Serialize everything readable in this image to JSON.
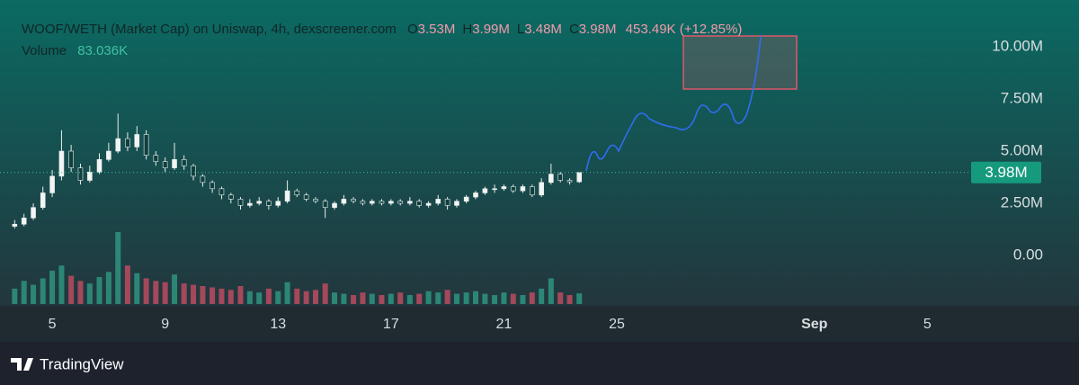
{
  "chart_data": {
    "type": "candlestick",
    "title": "WOOF/WETH (Market Cap) on Uniswap, 4h, dexscreener.com",
    "ohlc_legend": [
      {
        "letter": "O",
        "value": "3.53M"
      },
      {
        "letter": "H",
        "value": "3.99M"
      },
      {
        "letter": "L",
        "value": "3.48M"
      },
      {
        "letter": "C",
        "value": "3.98M"
      }
    ],
    "change": "453.49K (+12.85%)",
    "volume_label": "Volume",
    "volume_value": "83.036K",
    "last_label": "3.98M",
    "brand": "TradingView",
    "up_color": "#f2f5f4",
    "down_color": "#10403d",
    "volume_up_color": "#2e8f7c",
    "volume_down_color": "#b34a5e",
    "xlim": [
      3.15,
      37.55
    ],
    "ylim": [
      -2.41,
      12.24
    ],
    "xticks": [
      5,
      9,
      13,
      17,
      21,
      25,
      {
        "value": 32,
        "label": "Sep"
      },
      {
        "value": 36,
        "label": "5"
      }
    ],
    "yticks": [
      {
        "value": 10,
        "label": "10.00M"
      },
      {
        "value": 7.5,
        "label": "7.50M"
      },
      {
        "value": 5,
        "label": "5.00M"
      },
      {
        "value": 2.5,
        "label": "2.50M"
      },
      {
        "value": 0,
        "label": "0.00"
      }
    ],
    "grid": false,
    "x": [
      3.67,
      4,
      4.33,
      4.67,
      5,
      5.33,
      5.67,
      6,
      6.33,
      6.67,
      7,
      7.33,
      7.67,
      8,
      8.33,
      8.67,
      9,
      9.33,
      9.67,
      10,
      10.33,
      10.67,
      11,
      11.33,
      11.67,
      12,
      12.33,
      12.67,
      13,
      13.33,
      13.67,
      14,
      14.33,
      14.67,
      15,
      15.33,
      15.67,
      16,
      16.33,
      16.67,
      17,
      17.33,
      17.67,
      18,
      18.33,
      18.67,
      19,
      19.33,
      19.67,
      20,
      20.33,
      20.67,
      21,
      21.33,
      21.67,
      22,
      22.33,
      22.67,
      23,
      23.33,
      23.67
    ],
    "candles": [
      [
        1.4,
        1.7,
        1.3,
        1.5
      ],
      [
        1.5,
        2.0,
        1.4,
        1.8
      ],
      [
        1.8,
        2.5,
        1.7,
        2.3
      ],
      [
        2.3,
        3.3,
        2.2,
        3.0
      ],
      [
        3.0,
        4.1,
        2.8,
        3.8
      ],
      [
        3.8,
        6.0,
        3.6,
        5.0
      ],
      [
        5.0,
        5.3,
        4.0,
        4.2
      ],
      [
        4.2,
        4.4,
        3.4,
        3.6
      ],
      [
        3.6,
        4.3,
        3.5,
        4.0
      ],
      [
        4.0,
        4.9,
        3.9,
        4.6
      ],
      [
        4.6,
        5.4,
        4.5,
        5.0
      ],
      [
        5.0,
        6.8,
        4.9,
        5.6
      ],
      [
        5.6,
        5.9,
        5.0,
        5.2
      ],
      [
        5.2,
        6.2,
        5.0,
        5.8
      ],
      [
        5.8,
        6.0,
        4.6,
        4.8
      ],
      [
        4.8,
        5.0,
        4.3,
        4.5
      ],
      [
        4.5,
        4.7,
        4.0,
        4.2
      ],
      [
        4.2,
        5.4,
        4.1,
        4.6
      ],
      [
        4.6,
        4.8,
        4.1,
        4.3
      ],
      [
        4.3,
        4.4,
        3.6,
        3.8
      ],
      [
        3.8,
        3.9,
        3.3,
        3.5
      ],
      [
        3.5,
        3.6,
        3.0,
        3.2
      ],
      [
        3.2,
        3.3,
        2.7,
        2.9
      ],
      [
        2.9,
        3.0,
        2.5,
        2.7
      ],
      [
        2.7,
        2.8,
        2.2,
        2.4
      ],
      [
        2.4,
        2.7,
        2.3,
        2.5
      ],
      [
        2.5,
        2.8,
        2.4,
        2.6
      ],
      [
        2.6,
        2.7,
        2.2,
        2.4
      ],
      [
        2.4,
        2.8,
        2.3,
        2.6
      ],
      [
        2.6,
        3.6,
        2.5,
        3.1
      ],
      [
        3.1,
        3.2,
        2.8,
        2.9
      ],
      [
        2.9,
        3.0,
        2.6,
        2.7
      ],
      [
        2.7,
        2.8,
        2.5,
        2.6
      ],
      [
        2.6,
        2.7,
        1.8,
        2.3
      ],
      [
        2.3,
        2.6,
        2.2,
        2.5
      ],
      [
        2.5,
        2.9,
        2.4,
        2.7
      ],
      [
        2.7,
        2.8,
        2.5,
        2.6
      ],
      [
        2.6,
        2.7,
        2.4,
        2.5
      ],
      [
        2.5,
        2.7,
        2.4,
        2.6
      ],
      [
        2.6,
        2.7,
        2.4,
        2.5
      ],
      [
        2.5,
        2.7,
        2.4,
        2.6
      ],
      [
        2.6,
        2.7,
        2.4,
        2.5
      ],
      [
        2.5,
        2.8,
        2.4,
        2.6
      ],
      [
        2.6,
        2.7,
        2.3,
        2.4
      ],
      [
        2.4,
        2.6,
        2.3,
        2.5
      ],
      [
        2.5,
        2.9,
        2.4,
        2.7
      ],
      [
        2.7,
        2.8,
        2.2,
        2.4
      ],
      [
        2.4,
        2.7,
        2.3,
        2.6
      ],
      [
        2.6,
        2.9,
        2.5,
        2.8
      ],
      [
        2.8,
        3.1,
        2.7,
        3.0
      ],
      [
        3.0,
        3.3,
        2.9,
        3.2
      ],
      [
        3.2,
        3.4,
        3.0,
        3.2
      ],
      [
        3.2,
        3.4,
        3.1,
        3.3
      ],
      [
        3.3,
        3.4,
        3.0,
        3.1
      ],
      [
        3.1,
        3.4,
        3.0,
        3.3
      ],
      [
        3.3,
        3.4,
        2.8,
        2.9
      ],
      [
        2.9,
        3.7,
        2.8,
        3.5
      ],
      [
        3.5,
        4.4,
        3.4,
        3.9
      ],
      [
        3.9,
        4.0,
        3.5,
        3.6
      ],
      [
        3.6,
        3.7,
        3.4,
        3.53
      ],
      [
        3.53,
        3.99,
        3.48,
        3.98
      ]
    ],
    "volume": [
      120,
      180,
      150,
      200,
      260,
      300,
      220,
      180,
      160,
      210,
      250,
      560,
      300,
      240,
      200,
      180,
      170,
      230,
      160,
      150,
      140,
      130,
      120,
      110,
      140,
      100,
      90,
      120,
      100,
      170,
      120,
      100,
      110,
      160,
      90,
      80,
      70,
      90,
      80,
      70,
      80,
      90,
      70,
      80,
      100,
      90,
      110,
      80,
      90,
      100,
      80,
      70,
      90,
      80,
      70,
      90,
      120,
      200,
      90,
      70,
      83.036
    ]
  }
}
